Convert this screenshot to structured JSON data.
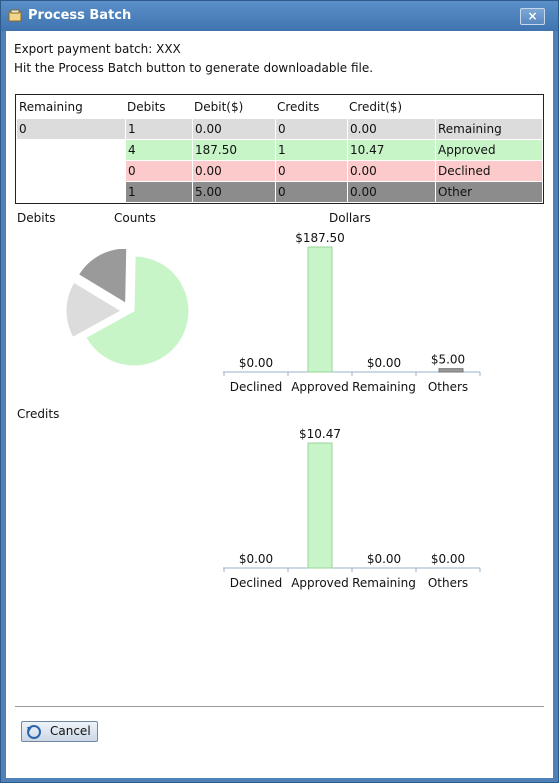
{
  "window": {
    "title": "Process Batch",
    "close_label": "×"
  },
  "info": {
    "export_line": "Export payment batch:  XXX",
    "instruction": "Hit the Process Batch button to generate downloadable file."
  },
  "table": {
    "headers": [
      "Remaining",
      "Debits",
      "Debit($)",
      "Credits",
      "Credit($)",
      ""
    ],
    "rows": [
      {
        "cells": [
          "0",
          "1",
          "0.00",
          "0",
          "0.00",
          "Remaining"
        ],
        "color": "#dcdcdc"
      },
      {
        "cells": [
          "",
          "4",
          "187.50",
          "1",
          "10.47",
          "Approved"
        ],
        "color": "#c8f5c8"
      },
      {
        "cells": [
          "",
          "0",
          "0.00",
          "0",
          "0.00",
          "Declined"
        ],
        "color": "#fccaca"
      },
      {
        "cells": [
          "",
          "1",
          "5.00",
          "0",
          "0.00",
          "Other"
        ],
        "color": "#8c8c8c"
      }
    ]
  },
  "labels": {
    "debits": "Debits",
    "counts": "Counts",
    "dollars": "Dollars",
    "credits": "Credits"
  },
  "chart_data": [
    {
      "type": "pie",
      "title": "Counts",
      "categories": [
        "Approved",
        "Remaining",
        "Other"
      ],
      "values": [
        4,
        1,
        1
      ],
      "colors": [
        "#c8f5c8",
        "#dcdcdc",
        "#9a9a9a"
      ]
    },
    {
      "type": "bar",
      "title": "Dollars",
      "categories": [
        "Declined",
        "Approved",
        "Remaining",
        "Others"
      ],
      "values": [
        0.0,
        187.5,
        0.0,
        5.0
      ],
      "value_labels": [
        "$0.00",
        "$187.50",
        "$0.00",
        "$5.00"
      ],
      "colors": [
        "#fccaca",
        "#c8f5c8",
        "#dcdcdc",
        "#9a9a9a"
      ],
      "ylim": [
        0,
        187.5
      ]
    },
    {
      "type": "bar",
      "title": "",
      "categories": [
        "Declined",
        "Approved",
        "Remaining",
        "Others"
      ],
      "values": [
        0.0,
        10.47,
        0.0,
        0.0
      ],
      "value_labels": [
        "$0.00",
        "$10.47",
        "$0.00",
        "$0.00"
      ],
      "colors": [
        "#fccaca",
        "#c8f5c8",
        "#dcdcdc",
        "#9a9a9a"
      ],
      "ylim": [
        0,
        10.47
      ]
    }
  ],
  "buttons": {
    "cancel": "Cancel"
  }
}
